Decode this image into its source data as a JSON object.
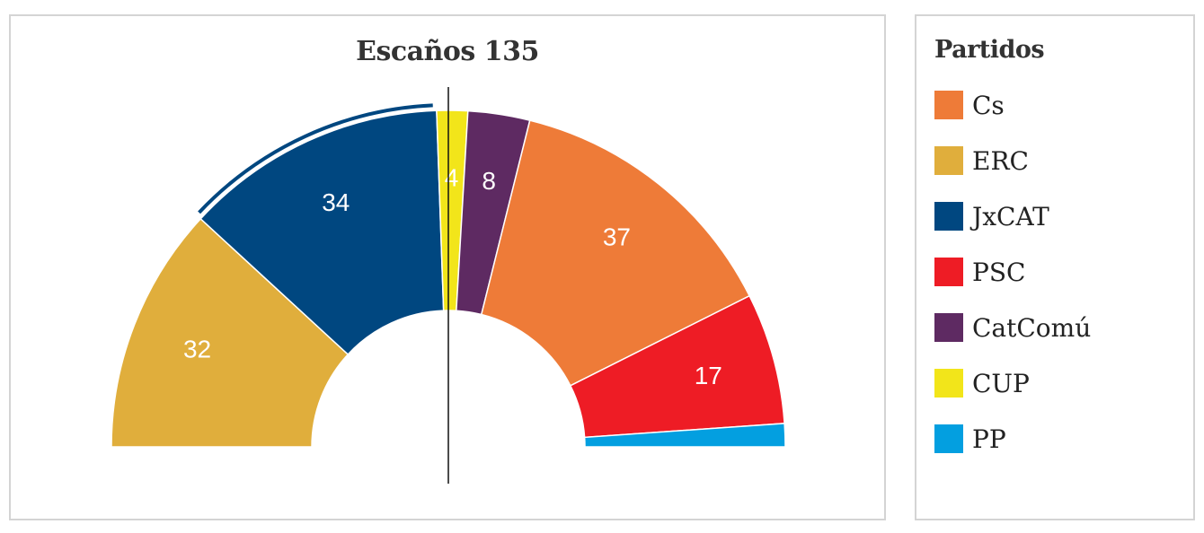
{
  "chart_data": {
    "type": "pie",
    "subtype": "parliament-semicircle",
    "title": "Escaños 135",
    "total_seats": 135,
    "majority_line": true,
    "legend_title": "Partidos",
    "legend_position": "right",
    "parties": [
      {
        "name": "ERC",
        "seats": 32,
        "color": "#E0AE3C",
        "label": "32"
      },
      {
        "name": "JxCAT",
        "seats": 34,
        "color": "#004780",
        "label": "34",
        "highlight_arc": true
      },
      {
        "name": "CUP",
        "seats": 4,
        "color": "#F2E51A",
        "label": "4"
      },
      {
        "name": "CatComú",
        "seats": 8,
        "color": "#5E2A62",
        "label": "8"
      },
      {
        "name": "Cs",
        "seats": 37,
        "color": "#EE7B38",
        "label": "37"
      },
      {
        "name": "PSC",
        "seats": 17,
        "color": "#EE1C25",
        "label": "17"
      },
      {
        "name": "PP",
        "seats": 3,
        "color": "#039FE0",
        "label": ""
      }
    ],
    "legend_order": [
      "Cs",
      "ERC",
      "JxCAT",
      "PSC",
      "CatComú",
      "CUP",
      "PP"
    ]
  }
}
